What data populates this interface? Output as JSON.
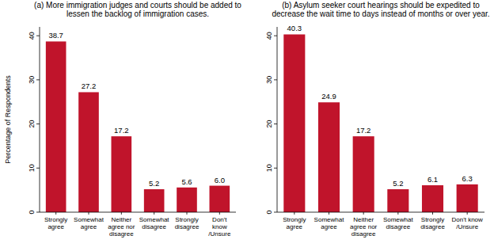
{
  "chart_data": [
    {
      "type": "bar",
      "title": "(a) More immigration judges and courts should be added to lessen the backlog of immigration cases.",
      "y_label": "Percentage of Respondents",
      "categories": [
        "Strongly agree",
        "Somewhat agree",
        "Neither agree nor disagree",
        "Somewhat disagree",
        "Strongly disagree",
        "Don't know /Unsure"
      ],
      "values": [
        38.7,
        27.2,
        17.2,
        5.2,
        5.6,
        6.0
      ],
      "value_labels": [
        "38.7",
        "27.2",
        "17.2",
        "5.2",
        "5.6",
        "6.0"
      ],
      "color": "#c0142b",
      "ylim": [
        0,
        42
      ],
      "yticks": [
        0,
        10,
        20,
        30,
        40
      ],
      "grid": false,
      "data_labels": true
    },
    {
      "type": "bar",
      "title": "(b) Asylum seeker court hearings should be expedited to decrease the wait time to days instead of months or over year.",
      "categories": [
        "Strongly agree",
        "Somewhat agree",
        "Neither agree nor disagree",
        "Somewhat disagree",
        "Strongly disagree",
        "Don't know /Unsure"
      ],
      "values": [
        40.3,
        24.9,
        17.2,
        5.2,
        6.1,
        6.3
      ],
      "value_labels": [
        "40.3",
        "24.9",
        "17.2",
        "5.2",
        "6.1",
        "6.3"
      ],
      "color": "#c0142b",
      "ylim": [
        0,
        42
      ],
      "yticks": [
        0,
        10,
        20,
        30,
        40
      ],
      "grid": false,
      "data_labels": true
    }
  ]
}
